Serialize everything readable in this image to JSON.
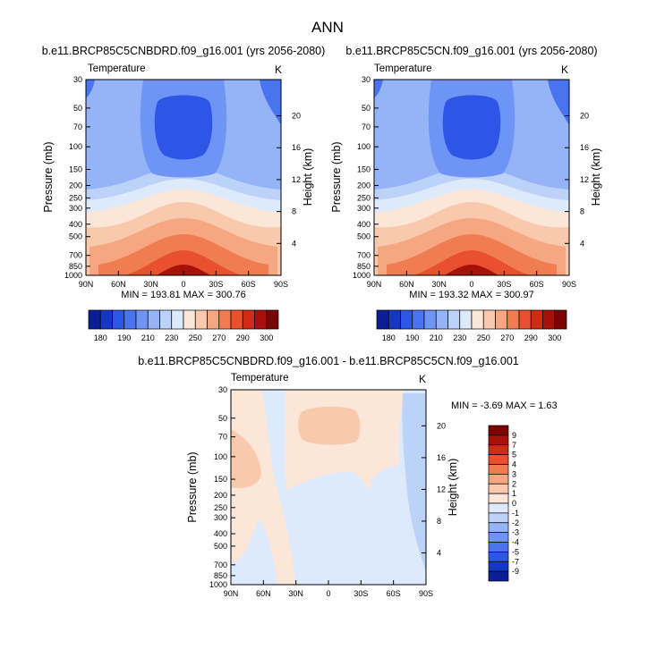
{
  "page_title": "ANN",
  "chart_data": [
    {
      "type": "heatmap",
      "id": "panel1",
      "title": "b.e11.BRCP85C5CNBDRD.f09_g16.001 (yrs 2056-2080)",
      "variable_label": "Temperature",
      "units_label": "K",
      "xlabel": "",
      "ylabel": "Pressure (mb)",
      "ylabel_right": "Height (km)",
      "x_ticks": [
        "90N",
        "60N",
        "30N",
        "0",
        "30S",
        "60S",
        "90S"
      ],
      "x_values": [
        90,
        60,
        30,
        0,
        -30,
        -60,
        -90
      ],
      "y_ticks": [
        "30",
        "50",
        "70",
        "100",
        "150",
        "200",
        "250",
        "300",
        "400",
        "500",
        "700",
        "850",
        "1000"
      ],
      "y_values": [
        30,
        50,
        70,
        100,
        150,
        200,
        250,
        300,
        400,
        500,
        700,
        850,
        1000
      ],
      "height_ticks": [
        "20",
        "16",
        "12",
        "8",
        "4"
      ],
      "height_values": [
        20,
        16,
        12,
        8,
        4
      ],
      "stats_text": "MIN = 193.81  MAX = 300.76",
      "min": 193.81,
      "max": 300.76,
      "contour_levels": [
        180,
        190,
        200,
        210,
        220,
        230,
        240,
        250,
        260,
        270,
        280,
        290,
        300
      ]
    },
    {
      "type": "heatmap",
      "id": "panel2",
      "title": "b.e11.BRCP85C5CN.f09_g16.001 (yrs 2056-2080)",
      "variable_label": "Temperature",
      "units_label": "K",
      "xlabel": "",
      "ylabel": "Pressure (mb)",
      "ylabel_right": "Height (km)",
      "x_ticks": [
        "90N",
        "60N",
        "30N",
        "0",
        "30S",
        "60S",
        "90S"
      ],
      "x_values": [
        90,
        60,
        30,
        0,
        -30,
        -60,
        -90
      ],
      "y_ticks": [
        "30",
        "50",
        "70",
        "100",
        "150",
        "200",
        "250",
        "300",
        "400",
        "500",
        "700",
        "850",
        "1000"
      ],
      "y_values": [
        30,
        50,
        70,
        100,
        150,
        200,
        250,
        300,
        400,
        500,
        700,
        850,
        1000
      ],
      "height_ticks": [
        "20",
        "16",
        "12",
        "8",
        "4"
      ],
      "height_values": [
        20,
        16,
        12,
        8,
        4
      ],
      "stats_text": "MIN = 193.32  MAX = 300.97",
      "min": 193.32,
      "max": 300.97,
      "contour_levels": [
        180,
        190,
        200,
        210,
        220,
        230,
        240,
        250,
        260,
        270,
        280,
        290,
        300
      ]
    },
    {
      "type": "heatmap",
      "id": "panel3",
      "title": "b.e11.BRCP85C5CNBDRD.f09_g16.001 - b.e11.BRCP85C5CN.f09_g16.001",
      "variable_label": "Temperature",
      "units_label": "K",
      "xlabel": "",
      "ylabel": "Pressure (mb)",
      "ylabel_right": "Height (km)",
      "x_ticks": [
        "90N",
        "60N",
        "30N",
        "0",
        "30S",
        "60S",
        "90S"
      ],
      "x_values": [
        90,
        60,
        30,
        0,
        -30,
        -60,
        -90
      ],
      "y_ticks": [
        "30",
        "50",
        "70",
        "100",
        "150",
        "200",
        "250",
        "300",
        "400",
        "500",
        "700",
        "850",
        "1000"
      ],
      "y_values": [
        30,
        50,
        70,
        100,
        150,
        200,
        250,
        300,
        400,
        500,
        700,
        850,
        1000
      ],
      "height_ticks": [
        "20",
        "16",
        "12",
        "8",
        "4"
      ],
      "height_values": [
        20,
        16,
        12,
        8,
        4
      ],
      "stats_text": "MIN =  -3.69  MAX =   1.63",
      "min": -3.69,
      "max": 1.63,
      "contour_levels": [
        -9,
        -7,
        -5,
        -4,
        -3,
        -2,
        -1,
        0,
        1,
        2,
        3,
        4,
        5,
        7,
        9
      ]
    }
  ],
  "colorbar_abs": {
    "labels": [
      "180",
      "190",
      "210",
      "230",
      "250",
      "270",
      "290",
      "300"
    ],
    "colors": [
      "#0a1e96",
      "#1437c8",
      "#2d55e6",
      "#4a73f0",
      "#6e95f5",
      "#94b4f7",
      "#bcd2f8",
      "#dceafb",
      "#fce6d8",
      "#f9c9ad",
      "#f6a681",
      "#f07c52",
      "#e8502e",
      "#d22a14",
      "#a8100a",
      "#7a0403"
    ]
  },
  "colorbar_diff": {
    "labels": [
      "9",
      "7",
      "5",
      "4",
      "3",
      "2",
      "1",
      "0",
      "-1",
      "-2",
      "-3",
      "-4",
      "-5",
      "-7",
      "-9"
    ],
    "colors": [
      "#7a0403",
      "#a8100a",
      "#d22a14",
      "#e8502e",
      "#f07c52",
      "#f6a681",
      "#f9c9ad",
      "#fce6d8",
      "#dceafb",
      "#bcd2f8",
      "#94b4f7",
      "#6e95f5",
      "#4a73f0",
      "#2d55e6",
      "#1437c8",
      "#0a1e96"
    ]
  }
}
